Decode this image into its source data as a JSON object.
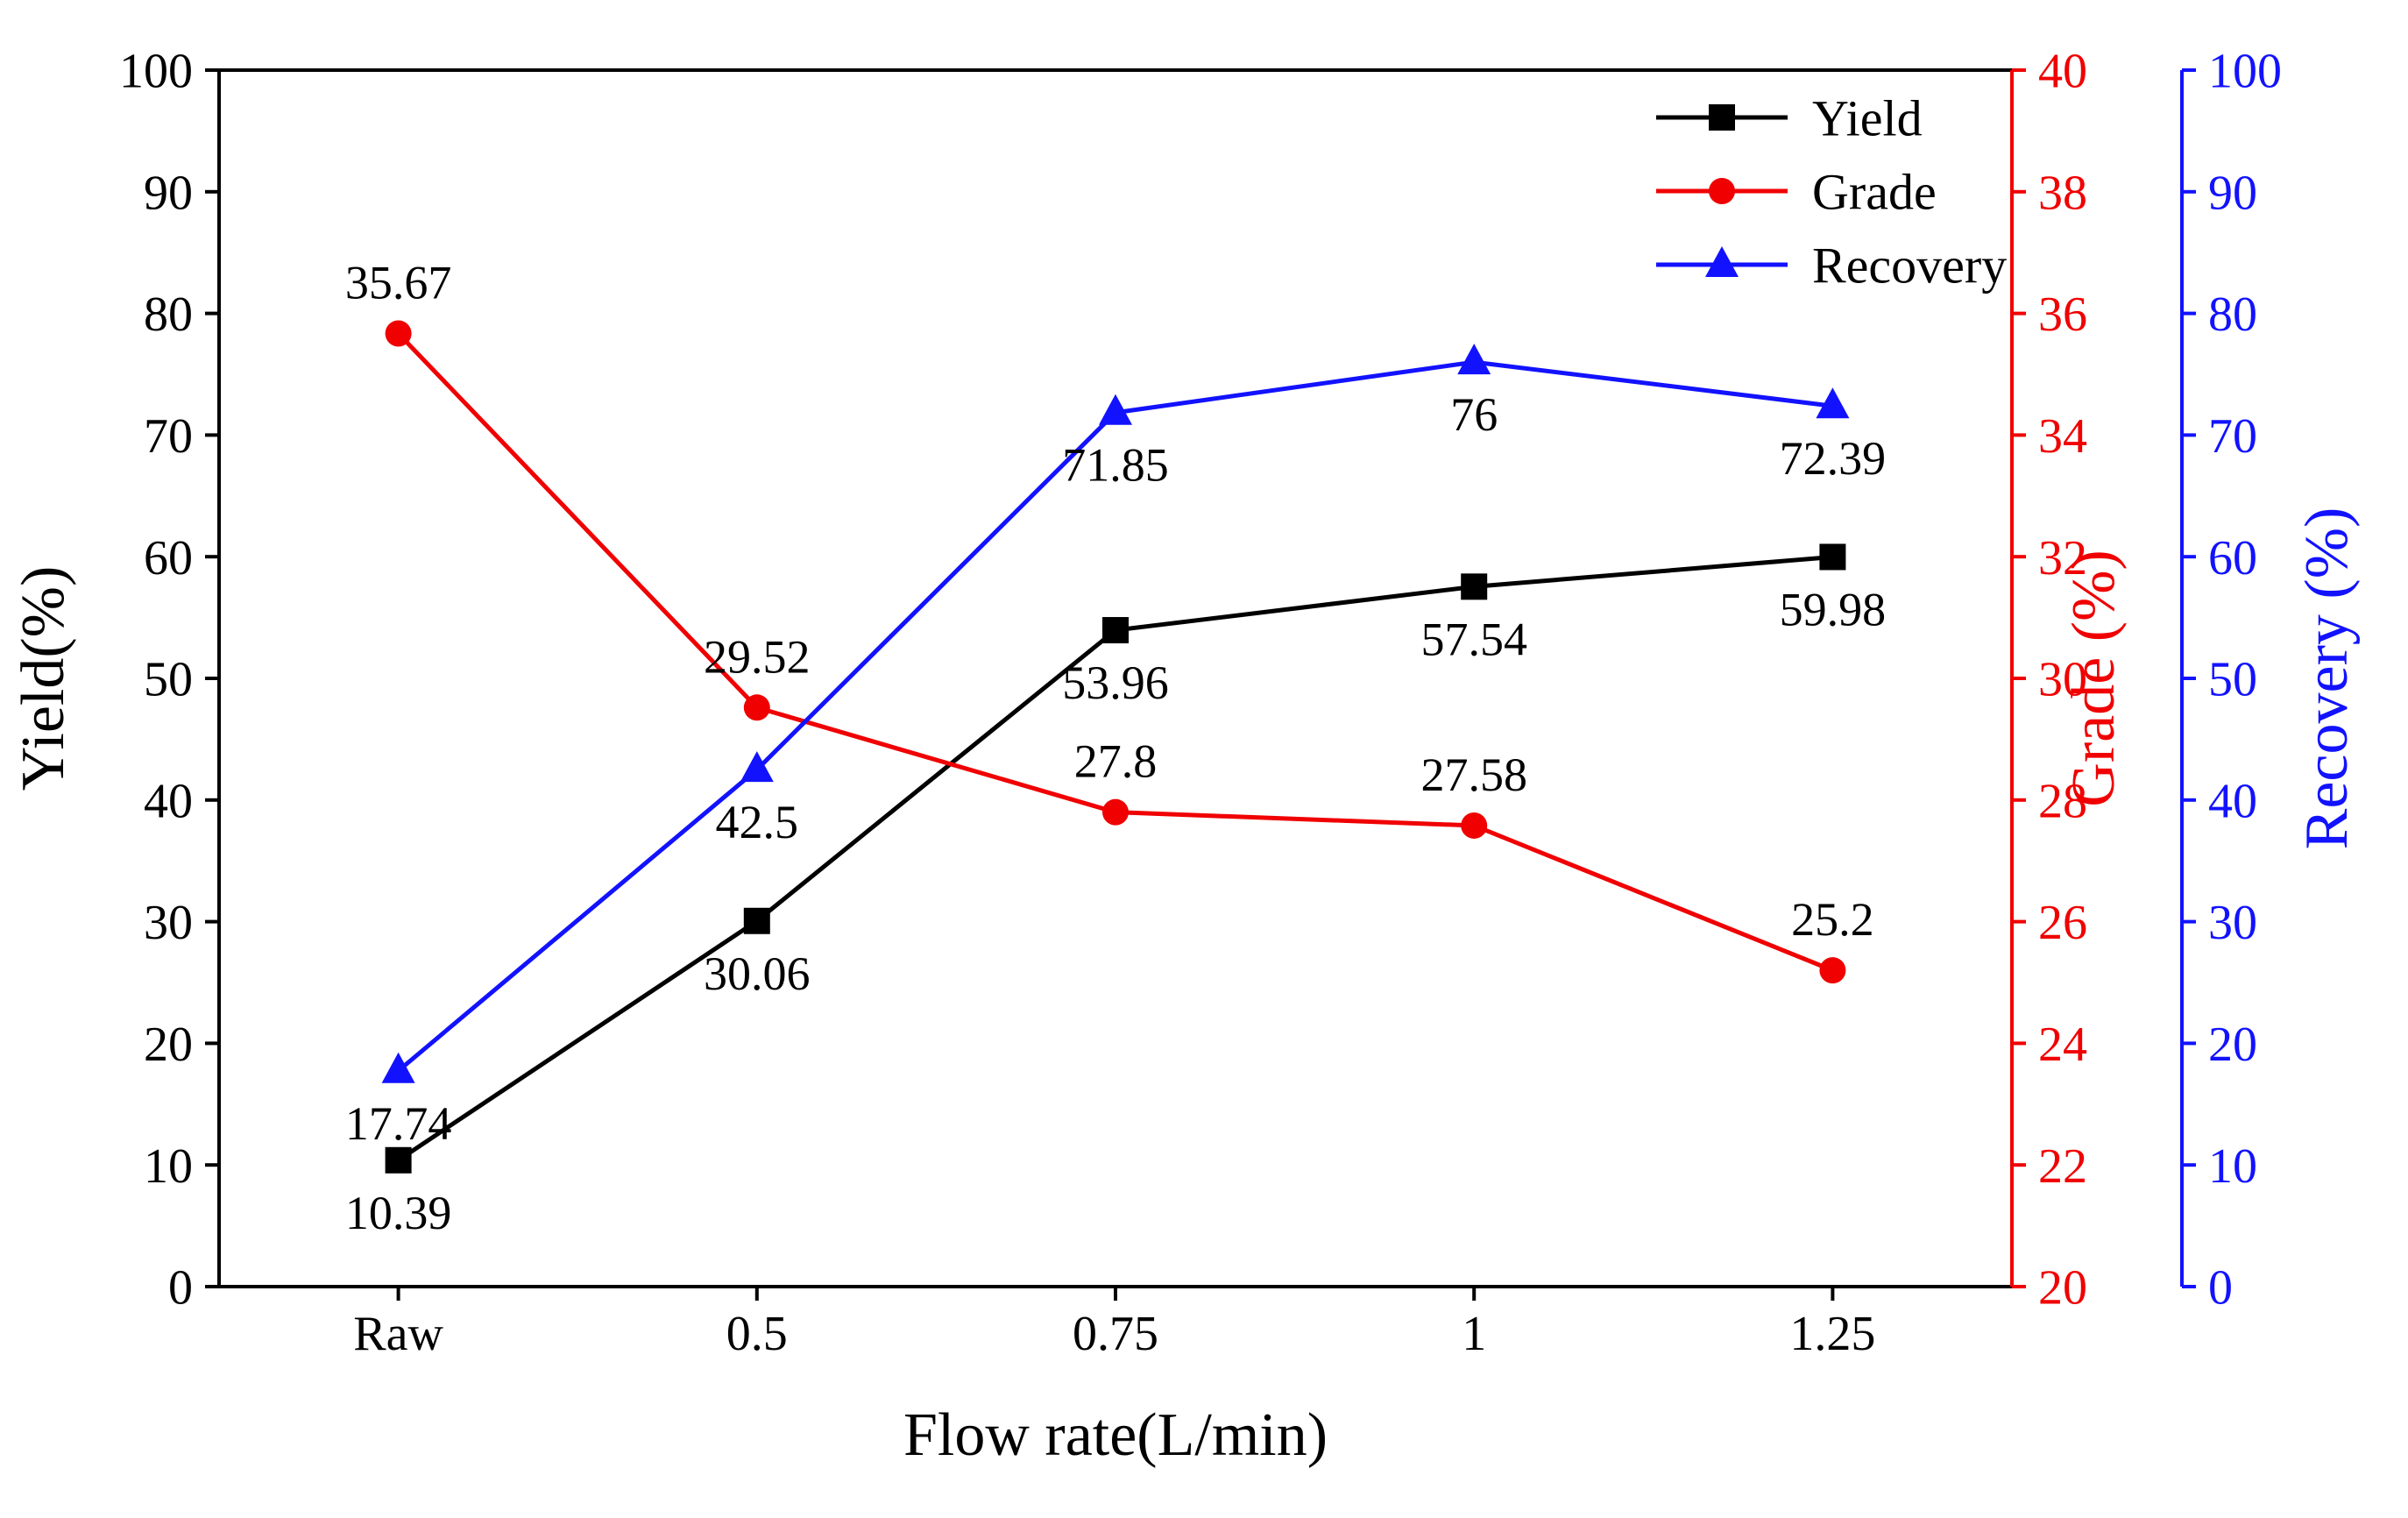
{
  "chart_data": {
    "type": "line",
    "title": "",
    "categories": [
      "Raw",
      "0.5",
      "0.75",
      "1",
      "1.25"
    ],
    "series": [
      {
        "name": "Yield",
        "axis": "yield",
        "color": "#000000",
        "marker": "square",
        "label_position": "below",
        "values": [
          10.39,
          30.06,
          53.96,
          57.54,
          59.98
        ],
        "labels": [
          "10.39",
          "30.06",
          "53.96",
          "57.54",
          "59.98"
        ]
      },
      {
        "name": "Grade",
        "axis": "grade",
        "color": "#f00000",
        "marker": "circle",
        "label_position": "above",
        "values": [
          35.67,
          29.52,
          27.8,
          27.58,
          25.2
        ],
        "labels": [
          "35.67",
          "29.52",
          "27.8",
          "27.58",
          "25.2"
        ]
      },
      {
        "name": "Recovery",
        "axis": "recovery",
        "color": "#1212ff",
        "marker": "triangle",
        "label_position": "below",
        "values": [
          17.74,
          42.5,
          71.85,
          76,
          72.39
        ],
        "labels": [
          "17.74",
          "42.5",
          "71.85",
          "76",
          "72.39"
        ]
      }
    ],
    "axes": {
      "x": {
        "label": "Flow rate(L/min)",
        "color": "#000000",
        "tick_labels": [
          "Raw",
          "0.5",
          "0.75",
          "1",
          "1.25"
        ]
      },
      "yield": {
        "label": "Yield(%)",
        "side": "left",
        "color": "#000000",
        "min": 0,
        "max": 100,
        "ticks": [
          0,
          10,
          20,
          30,
          40,
          50,
          60,
          70,
          80,
          90,
          100
        ]
      },
      "grade": {
        "label": "Grade (%)",
        "side": "right",
        "color": "#f00000",
        "min": 20,
        "max": 40,
        "ticks": [
          20,
          22,
          24,
          26,
          28,
          30,
          32,
          34,
          36,
          38,
          40
        ]
      },
      "recovery": {
        "label": "Recovery (%)",
        "side": "far-right",
        "color": "#1212ff",
        "min": 0,
        "max": 100,
        "ticks": [
          0,
          10,
          20,
          30,
          40,
          50,
          60,
          70,
          80,
          90,
          100
        ]
      }
    },
    "legend": {
      "position": "top-right",
      "entries": [
        "Yield",
        "Grade",
        "Recovery"
      ]
    },
    "grid": false,
    "background": "#ffffff"
  }
}
